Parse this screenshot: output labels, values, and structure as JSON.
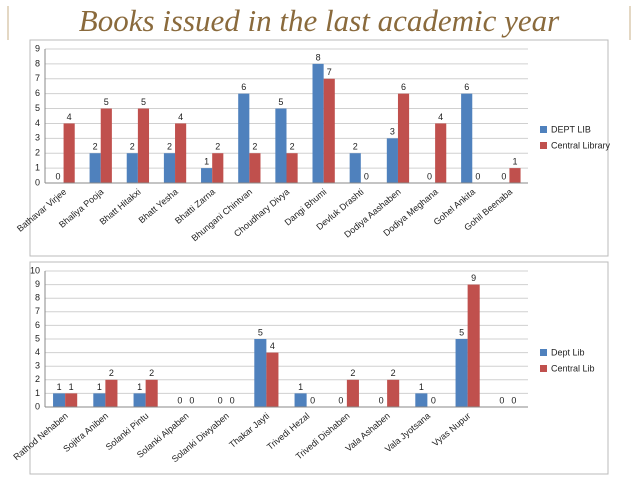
{
  "title": "Books issued in the last academic year",
  "chart_data": [
    {
      "type": "bar",
      "categories": [
        "Bathavar Virjee",
        "Bhaliya Pooja",
        "Bhatt Hitakxi",
        "Bhatt Yesha",
        "Bhatti Zarna",
        "Bhungani Chintvan",
        "Choudhary Divya",
        "Dangi Bhumi",
        "Devluk Drashti",
        "Dodiya Aashaben",
        "Dodiya Meghana",
        "Gohel Ankita",
        "Gohil Beenaba"
      ],
      "series": [
        {
          "name": "DEPT LIB",
          "color": "#4f81bd",
          "values": [
            0,
            2,
            2,
            2,
            1,
            6,
            5,
            8,
            2,
            3,
            0,
            6,
            0
          ]
        },
        {
          "name": "Central Library",
          "color": "#c0504d",
          "values": [
            4,
            5,
            5,
            4,
            2,
            2,
            2,
            7,
            0,
            6,
            4,
            0,
            1
          ]
        }
      ],
      "ylim": [
        0,
        9
      ],
      "yticks": [
        0,
        1,
        2,
        3,
        4,
        5,
        6,
        7,
        8,
        9
      ],
      "grid": true,
      "legend": "right"
    },
    {
      "type": "bar",
      "categories": [
        "Rathod Nehaben",
        "Sojitra Aniben",
        "Solanki Pintu",
        "Solanki Alpaben",
        "Solanki Diwyaben",
        "Thakar Jayti",
        "Trivedi Hezal",
        "Trivedi Dishaben",
        "Vala Ashaben",
        "Vala Jyotsana",
        "Vyas Nupur",
        null
      ],
      "series": [
        {
          "name": "Dept Lib",
          "color": "#4f81bd",
          "values": [
            1,
            1,
            1,
            0,
            0,
            5,
            1,
            0,
            0,
            1,
            5,
            0
          ]
        },
        {
          "name": "Central Lib",
          "color": "#c0504d",
          "values": [
            1,
            2,
            2,
            0,
            0,
            4,
            0,
            2,
            2,
            0,
            9,
            0
          ]
        }
      ],
      "ylim": [
        0,
        10
      ],
      "yticks": [
        0,
        1,
        2,
        3,
        4,
        5,
        6,
        7,
        8,
        9,
        10
      ],
      "grid": true,
      "legend": "right"
    }
  ]
}
